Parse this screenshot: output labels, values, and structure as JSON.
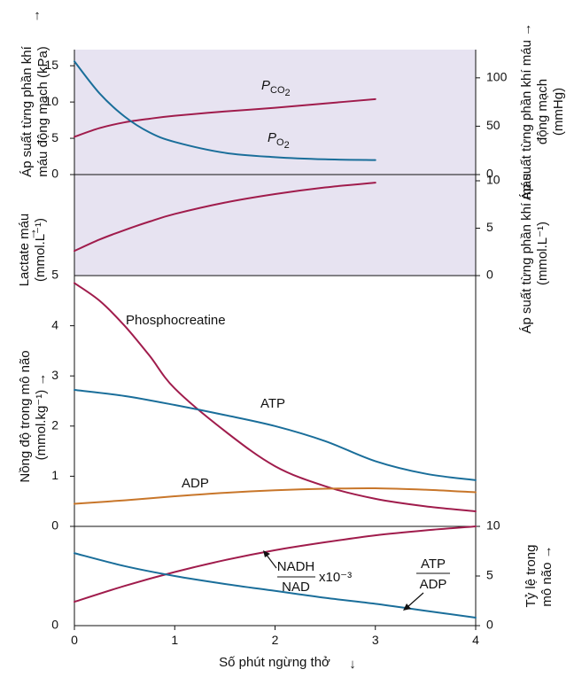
{
  "chart_data": {
    "type": "line",
    "x_label": "Số phút ngừng thở",
    "x_ticks": [
      "0",
      "1",
      "2",
      "3",
      "4"
    ],
    "xlim": [
      0,
      4
    ],
    "panels": [
      {
        "id": "blood-gas",
        "ylabel_left": "Áp suất từng phần khí máu động mạch (kPa)",
        "ylabel_right": "Áp suất từng phần khí máu động mạch (mmHg)",
        "ylim": [
          0,
          16
        ],
        "yticks_left": [
          "0",
          "5",
          "10",
          "15"
        ],
        "ylim_right": [
          0,
          120
        ],
        "yticks_right": [
          "0",
          "50",
          "100"
        ],
        "series": [
          {
            "name": "PCO2",
            "label_main": "P",
            "label_sub": "CO2",
            "color": "#a01c4c",
            "x": [
              0,
              0.25,
              0.5,
              0.75,
              1,
              1.5,
              2,
              2.5,
              3
            ],
            "y": [
              5.2,
              6.4,
              7.2,
              7.7,
              8.1,
              8.7,
              9.2,
              9.8,
              10.4
            ]
          },
          {
            "name": "PO2",
            "label_main": "P",
            "label_sub": "O2",
            "color": "#1a6e9a",
            "x": [
              0,
              0.25,
              0.5,
              0.75,
              1,
              1.5,
              2,
              2.5,
              3
            ],
            "y": [
              15.6,
              11.2,
              8.0,
              5.8,
              4.5,
              3.0,
              2.4,
              2.1,
              2.0
            ]
          }
        ]
      },
      {
        "id": "lactate",
        "ylabel_left": "Lactate máu (mmol.L⁻¹)",
        "ylabel_right": "Áp suất từng phần khí máu động mạch (mmol.L⁻¹)",
        "ylim": [
          0,
          10
        ],
        "ylim_right": [
          0,
          10
        ],
        "yticks_right": [
          "0",
          "5",
          "10"
        ],
        "left_tick": "5",
        "series": [
          {
            "name": "Lactate",
            "color": "#a01c4c",
            "x": [
              0,
              0.25,
              0.5,
              0.75,
              1,
              1.5,
              2,
              2.5,
              3
            ],
            "y": [
              2.6,
              3.8,
              4.8,
              5.7,
              6.5,
              7.7,
              8.6,
              9.3,
              9.8
            ]
          }
        ]
      },
      {
        "id": "brain-concentration",
        "ylabel_left": "Nồng độ trong mô não (mmol.kg⁻¹)",
        "ylim": [
          0,
          5
        ],
        "yticks_left": [
          "0",
          "1",
          "2",
          "3",
          "4"
        ],
        "series": [
          {
            "name": "Phosphocreatine",
            "color": "#a01c4c",
            "x": [
              0,
              0.25,
              0.5,
              0.75,
              1,
              1.5,
              2,
              2.5,
              3,
              3.5,
              4
            ],
            "y": [
              4.85,
              4.5,
              4.0,
              3.4,
              2.75,
              1.9,
              1.2,
              0.8,
              0.55,
              0.4,
              0.3
            ]
          },
          {
            "name": "ATP",
            "color": "#1a6e9a",
            "x": [
              0,
              0.5,
              1,
              1.5,
              2,
              2.5,
              3,
              3.5,
              4
            ],
            "y": [
              2.72,
              2.6,
              2.42,
              2.22,
              2.0,
              1.7,
              1.3,
              1.05,
              0.92
            ]
          },
          {
            "name": "ADP",
            "color": "#c8762a",
            "x": [
              0,
              0.5,
              1,
              1.5,
              2,
              2.5,
              3,
              3.5,
              4
            ],
            "y": [
              0.45,
              0.52,
              0.6,
              0.67,
              0.72,
              0.75,
              0.76,
              0.73,
              0.68
            ]
          }
        ]
      },
      {
        "id": "ratio",
        "ylabel_right": "Tỷ lệ trong mô não",
        "ylim": [
          0,
          10
        ],
        "ylim_right": [
          0,
          10
        ],
        "yticks_right": [
          "0",
          "5",
          "10"
        ],
        "left_tick": "0",
        "series": [
          {
            "name": "NADH/NAD x10⁻³",
            "color": "#a01c4c",
            "x": [
              0,
              0.5,
              1,
              1.5,
              2,
              2.5,
              3,
              3.5,
              4
            ],
            "y": [
              2.4,
              4.0,
              5.4,
              6.6,
              7.6,
              8.4,
              9.1,
              9.6,
              10.0
            ]
          },
          {
            "name": "ATP/ADP",
            "color": "#1a6e9a",
            "x": [
              0,
              0.5,
              1,
              1.5,
              2,
              2.5,
              3,
              3.5,
              4
            ],
            "y": [
              7.3,
              6.0,
              5.0,
              4.2,
              3.5,
              2.8,
              2.2,
              1.5,
              0.8
            ]
          }
        ]
      }
    ],
    "annotations": {
      "phosphocreatine": "Phosphocreatine",
      "atp": "ATP",
      "adp": "ADP",
      "nadh_num": "NADH",
      "nadh_den": "NAD",
      "nadh_factor": "x10⁻³",
      "atp_adp_num": "ATP",
      "atp_adp_den": "ADP"
    }
  }
}
